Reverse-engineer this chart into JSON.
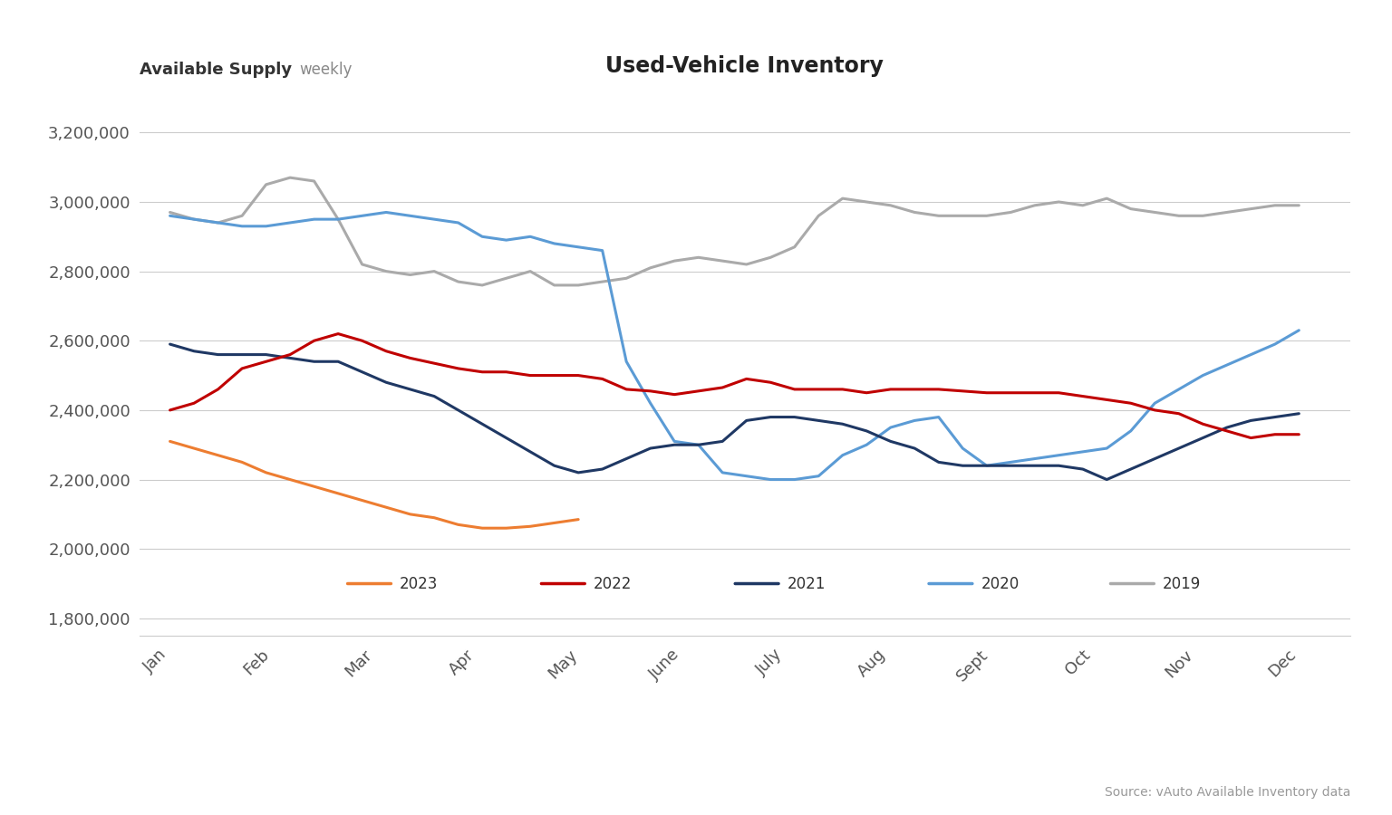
{
  "title": "Used-Vehicle Inventory",
  "ylabel_bold": "Available Supply",
  "ylabel_light": "weekly",
  "source_text": "Source: vAuto Available Inventory data",
  "x_labels": [
    "Jan",
    "Feb",
    "Mar",
    "Apr",
    "May",
    "June",
    "July",
    "Aug",
    "Sept",
    "Oct",
    "Nov",
    "Dec"
  ],
  "ylim": [
    1750000,
    3300000
  ],
  "yticks": [
    1800000,
    2000000,
    2200000,
    2400000,
    2600000,
    2800000,
    3000000,
    3200000
  ],
  "background_color": "#ffffff",
  "grid_color": "#cccccc",
  "series_order": [
    "2019",
    "2020",
    "2021",
    "2022",
    "2023"
  ],
  "series": {
    "2019": {
      "color": "#aaaaaa",
      "values": [
        2970000,
        2950000,
        2940000,
        2960000,
        3050000,
        3070000,
        3060000,
        2950000,
        2820000,
        2800000,
        2790000,
        2800000,
        2770000,
        2760000,
        2780000,
        2800000,
        2760000,
        2760000,
        2770000,
        2780000,
        2810000,
        2830000,
        2840000,
        2830000,
        2820000,
        2840000,
        2870000,
        2960000,
        3010000,
        3000000,
        2990000,
        2970000,
        2960000,
        2960000,
        2960000,
        2970000,
        2990000,
        3000000,
        2990000,
        3010000,
        2980000,
        2970000,
        2960000,
        2960000,
        2970000,
        2980000,
        2990000,
        2990000
      ]
    },
    "2020": {
      "color": "#5B9BD5",
      "values": [
        2960000,
        2950000,
        2940000,
        2930000,
        2930000,
        2940000,
        2950000,
        2950000,
        2960000,
        2970000,
        2960000,
        2950000,
        2940000,
        2900000,
        2890000,
        2900000,
        2880000,
        2870000,
        2860000,
        2540000,
        2420000,
        2310000,
        2300000,
        2220000,
        2210000,
        2200000,
        2200000,
        2210000,
        2270000,
        2300000,
        2350000,
        2370000,
        2380000,
        2290000,
        2240000,
        2250000,
        2260000,
        2270000,
        2280000,
        2290000,
        2340000,
        2420000,
        2460000,
        2500000,
        2530000,
        2560000,
        2590000,
        2630000
      ]
    },
    "2021": {
      "color": "#1F3864",
      "values": [
        2590000,
        2570000,
        2560000,
        2560000,
        2560000,
        2550000,
        2540000,
        2540000,
        2510000,
        2480000,
        2460000,
        2440000,
        2400000,
        2360000,
        2320000,
        2280000,
        2240000,
        2220000,
        2230000,
        2260000,
        2290000,
        2300000,
        2300000,
        2310000,
        2370000,
        2380000,
        2380000,
        2370000,
        2360000,
        2340000,
        2310000,
        2290000,
        2250000,
        2240000,
        2240000,
        2240000,
        2240000,
        2240000,
        2230000,
        2200000,
        2230000,
        2260000,
        2290000,
        2320000,
        2350000,
        2370000,
        2380000,
        2390000
      ]
    },
    "2022": {
      "color": "#C00000",
      "values": [
        2400000,
        2420000,
        2460000,
        2520000,
        2540000,
        2560000,
        2600000,
        2620000,
        2600000,
        2570000,
        2550000,
        2535000,
        2520000,
        2510000,
        2510000,
        2500000,
        2500000,
        2500000,
        2490000,
        2460000,
        2455000,
        2445000,
        2455000,
        2465000,
        2490000,
        2480000,
        2460000,
        2460000,
        2460000,
        2450000,
        2460000,
        2460000,
        2460000,
        2455000,
        2450000,
        2450000,
        2450000,
        2450000,
        2440000,
        2430000,
        2420000,
        2400000,
        2390000,
        2360000,
        2340000,
        2320000,
        2330000,
        2330000
      ]
    },
    "2023": {
      "color": "#ED7D31",
      "values": [
        2310000,
        2290000,
        2270000,
        2250000,
        2220000,
        2200000,
        2180000,
        2160000,
        2140000,
        2120000,
        2100000,
        2090000,
        2070000,
        2060000,
        2060000,
        2065000,
        2075000,
        2085000,
        null,
        null,
        null,
        null,
        null,
        null,
        null,
        null,
        null,
        null,
        null,
        null,
        null,
        null,
        null,
        null,
        null,
        null,
        null,
        null,
        null,
        null,
        null,
        null,
        null,
        null,
        null,
        null,
        null,
        null
      ]
    }
  },
  "legend": {
    "entries": [
      "2023",
      "2022",
      "2021",
      "2020",
      "2019"
    ],
    "colors": [
      "#ED7D31",
      "#C00000",
      "#1F3864",
      "#5B9BD5",
      "#aaaaaa"
    ]
  }
}
